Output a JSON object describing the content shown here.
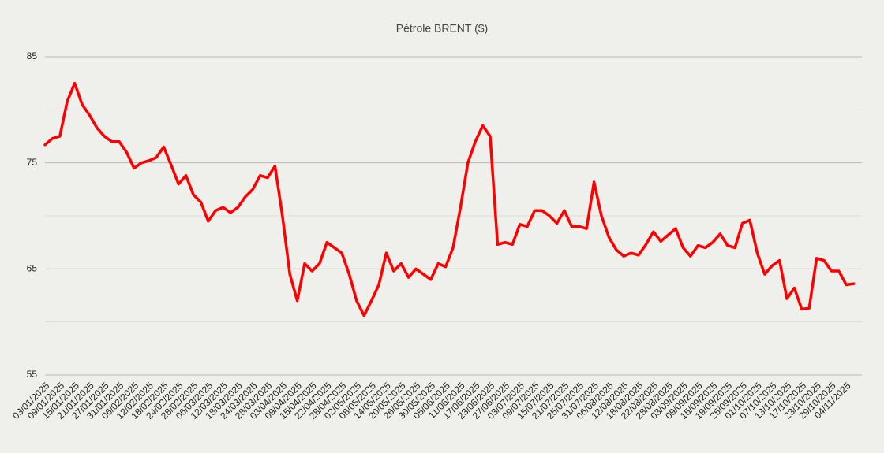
{
  "chart_data": {
    "type": "line",
    "title": "Pétrole BRENT ($)",
    "categories": [
      "03/01/2025",
      null,
      "09/01/2025",
      null,
      "15/01/2025",
      null,
      "21/01/2025",
      null,
      "27/01/2025",
      null,
      "31/01/2025",
      null,
      "06/02/2025",
      null,
      "12/02/2025",
      null,
      "18/02/2025",
      null,
      "24/02/2025",
      null,
      "28/02/2025",
      null,
      "06/03/2025",
      null,
      "12/03/2025",
      null,
      "18/03/2025",
      null,
      "24/03/2025",
      null,
      "28/03/2025",
      null,
      "03/04/2025",
      null,
      "09/04/2025",
      null,
      "15/04/2025",
      null,
      "22/04/2025",
      null,
      "28/04/2025",
      null,
      "02/05/2025",
      null,
      "08/05/2025",
      null,
      "14/05/2025",
      null,
      "20/05/2025",
      null,
      "26/05/2025",
      null,
      "30/05/2025",
      null,
      "05/06/2025",
      null,
      "11/06/2025",
      null,
      "17/06/2025",
      null,
      "23/06/2025",
      null,
      "27/06/2025",
      null,
      "03/07/2025",
      null,
      "09/07/2025",
      null,
      "15/07/2025",
      null,
      "21/07/2025",
      null,
      "25/07/2025",
      null,
      "31/07/2025",
      null,
      "06/08/2025",
      null,
      "12/08/2025",
      null,
      "18/08/2025",
      null,
      "22/08/2025",
      null,
      "28/08/2025",
      null,
      "03/09/2025",
      null,
      "09/09/2025",
      null,
      "15/09/2025",
      null,
      "19/09/2025",
      null,
      "25/09/2025",
      null,
      "01/10/2025",
      null,
      "07/10/2025",
      null,
      "13/10/2025",
      null,
      "17/10/2025",
      null,
      "23/10/2025",
      null,
      "29/10/2025",
      null,
      "04/11/2025",
      null
    ],
    "series": [
      {
        "name": "Pétrole BRENT ($)",
        "color": "#ff0000",
        "values": [
          76.7,
          77.3,
          77.5,
          80.8,
          82.5,
          80.5,
          79.5,
          78.3,
          77.5,
          77,
          77,
          76,
          74.5,
          75,
          75.2,
          75.5,
          76.5,
          74.8,
          73,
          73.8,
          72,
          71.3,
          69.5,
          70.5,
          70.8,
          70.3,
          70.8,
          71.8,
          72.5,
          73.8,
          73.6,
          74.7,
          70,
          64.5,
          62,
          65.5,
          64.8,
          65.5,
          67.5,
          67,
          66.5,
          64.5,
          62,
          60.6,
          62,
          63.5,
          66.5,
          64.8,
          65.5,
          64.2,
          65,
          64.5,
          64,
          65.5,
          65.2,
          67,
          70.8,
          75,
          77,
          78.5,
          77.5,
          67.3,
          67.5,
          67.3,
          69.2,
          69,
          70.5,
          70.5,
          70,
          69.3,
          70.5,
          69,
          69,
          68.8,
          73.2,
          70,
          68,
          66.8,
          66.2,
          66.5,
          66.3,
          67.3,
          68.5,
          67.6,
          68.2,
          68.8,
          67,
          66.2,
          67.2,
          67,
          67.5,
          68.3,
          67.2,
          67,
          69.3,
          69.6,
          66.5,
          64.5,
          65.3,
          65.8,
          62.2,
          63.2,
          61.2,
          61.3,
          66,
          65.8,
          64.8,
          64.8,
          63.5,
          63.6
        ]
      }
    ],
    "ylim": [
      55,
      85
    ],
    "yticks": [
      55,
      65,
      75,
      85
    ],
    "minor_yticks": [
      60,
      70,
      80
    ],
    "grid": true
  }
}
